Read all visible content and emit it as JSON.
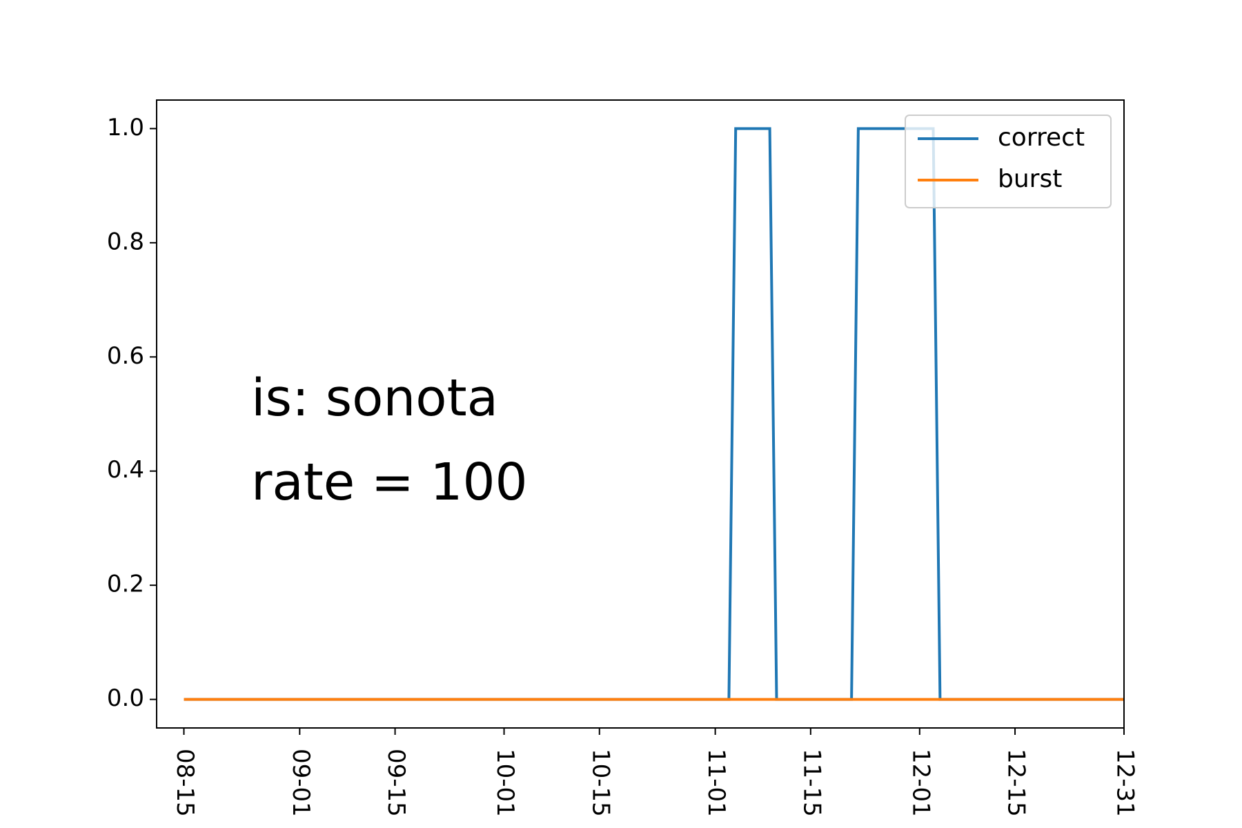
{
  "chart_data": {
    "type": "line",
    "title": "",
    "xlabel": "",
    "ylabel": "",
    "x_ticks": [
      "08-15",
      "09-01",
      "09-15",
      "10-01",
      "10-15",
      "11-01",
      "11-15",
      "12-01",
      "12-15",
      "12-31"
    ],
    "y_ticks": [
      "0.0",
      "0.2",
      "0.4",
      "0.6",
      "0.8",
      "1.0"
    ],
    "ylim": [
      -0.05,
      1.05
    ],
    "xlim": [
      "08-11",
      "12-31"
    ],
    "grid": false,
    "legend_position": "top-right",
    "annotation": [
      "is: sonota",
      "rate = 100"
    ],
    "series": [
      {
        "name": "correct",
        "color": "#1f77b4",
        "points": [
          [
            "08-15",
            0
          ],
          [
            "11-03",
            0
          ],
          [
            "11-04",
            1
          ],
          [
            "11-09",
            1
          ],
          [
            "11-10",
            0
          ],
          [
            "11-21",
            0
          ],
          [
            "11-22",
            1
          ],
          [
            "12-03",
            1
          ],
          [
            "12-04",
            0
          ],
          [
            "12-31",
            0
          ]
        ]
      },
      {
        "name": "burst",
        "color": "#ff7f0e",
        "points": [
          [
            "08-15",
            0
          ],
          [
            "12-31",
            0
          ]
        ]
      }
    ]
  }
}
